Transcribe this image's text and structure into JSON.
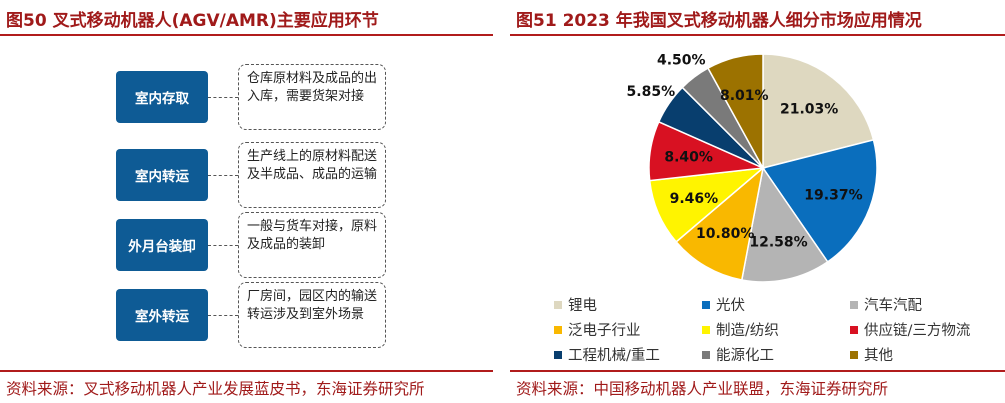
{
  "left_panel": {
    "title": "图50  叉式移动机器人(AGV/AMR)主要应用环节",
    "source": "资料来源：叉式移动机器人产业发展蓝皮书，东海证券研究所",
    "flow": [
      {
        "label": "室内存取",
        "desc": "仓库原材料及成品的出入库，需要货架对接"
      },
      {
        "label": "室内转运",
        "desc": "生产线上的原材料配送及半成品、成品的运输"
      },
      {
        "label": "外月台装卸",
        "desc": "一般与货车对接，原料及成品的装卸"
      },
      {
        "label": "室外转运",
        "desc": "厂房间，园区内的输送转运涉及到室外场景"
      }
    ]
  },
  "right_panel": {
    "title": "图51  2023 年我国叉式移动机器人细分市场应用情况",
    "source": "资料来源：中国移动机器人产业联盟，东海证券研究所"
  },
  "chart_data": {
    "type": "pie",
    "title": "图51  2023 年我国叉式移动机器人细分市场应用情况",
    "unit": "%",
    "legend_position": "bottom",
    "series": [
      {
        "name": "锂电",
        "value": 21.03,
        "label": "21.03%",
        "color": "#ded8c0"
      },
      {
        "name": "光伏",
        "value": 19.37,
        "label": "19.37%",
        "color": "#0a6ebd"
      },
      {
        "name": "汽车汽配",
        "value": 12.58,
        "label": "12.58%",
        "color": "#b4b4b4"
      },
      {
        "name": "泛电子行业",
        "value": 10.8,
        "label": "10.80%",
        "color": "#f9b800"
      },
      {
        "name": "制造/纺织",
        "value": 9.46,
        "label": "9.46%",
        "color": "#fff400"
      },
      {
        "name": "供应链/三方物流",
        "value": 8.4,
        "label": "8.40%",
        "color": "#d81122"
      },
      {
        "name": "工程机械/重工",
        "value": 5.85,
        "label": "5.85%",
        "color": "#083e6e"
      },
      {
        "name": "能源化工",
        "value": 4.5,
        "label": "4.50%",
        "color": "#7a7a7a"
      },
      {
        "name": "其他",
        "value": 8.01,
        "label": "8.01%",
        "color": "#9c7200"
      }
    ]
  }
}
